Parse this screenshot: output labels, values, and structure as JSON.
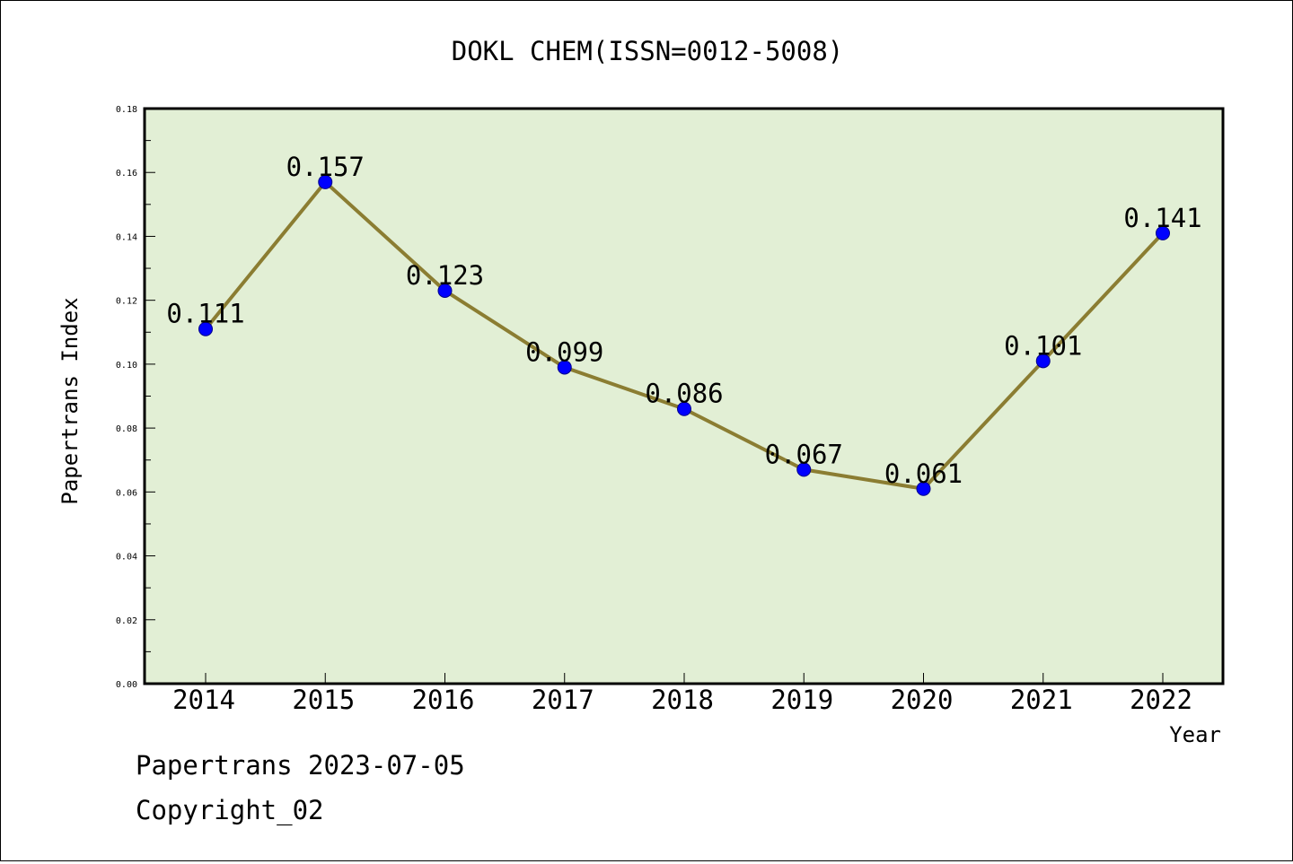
{
  "footer": {
    "line1": "Papertrans 2023-07-05",
    "line2": "Copyright_02"
  },
  "chart_data": {
    "type": "line",
    "title": "DOKL CHEM(ISSN=0012-5008)",
    "xlabel": "Year",
    "ylabel": "Papertrans Index",
    "x": [
      "2014",
      "2015",
      "2016",
      "2017",
      "2018",
      "2019",
      "2020",
      "2021",
      "2022"
    ],
    "series": [
      {
        "values": [
          0.111,
          0.157,
          0.123,
          0.099,
          0.086,
          0.067,
          0.061,
          0.101,
          0.141
        ]
      }
    ],
    "data_labels": [
      "0.111",
      "0.157",
      "0.123",
      "0.099",
      "0.086",
      "0.067",
      "0.061",
      "0.101",
      "0.141"
    ],
    "ylim": [
      0,
      0.18
    ],
    "yticks": [
      "0.00",
      "0.02",
      "0.04",
      "0.06",
      "0.08",
      "0.10",
      "0.12",
      "0.14",
      "0.16",
      "0.18"
    ],
    "grid": false,
    "legend": "none",
    "colors": {
      "plot_background": "#e2efd5",
      "line": "#8b7d32",
      "marker": "#0000ff"
    }
  }
}
